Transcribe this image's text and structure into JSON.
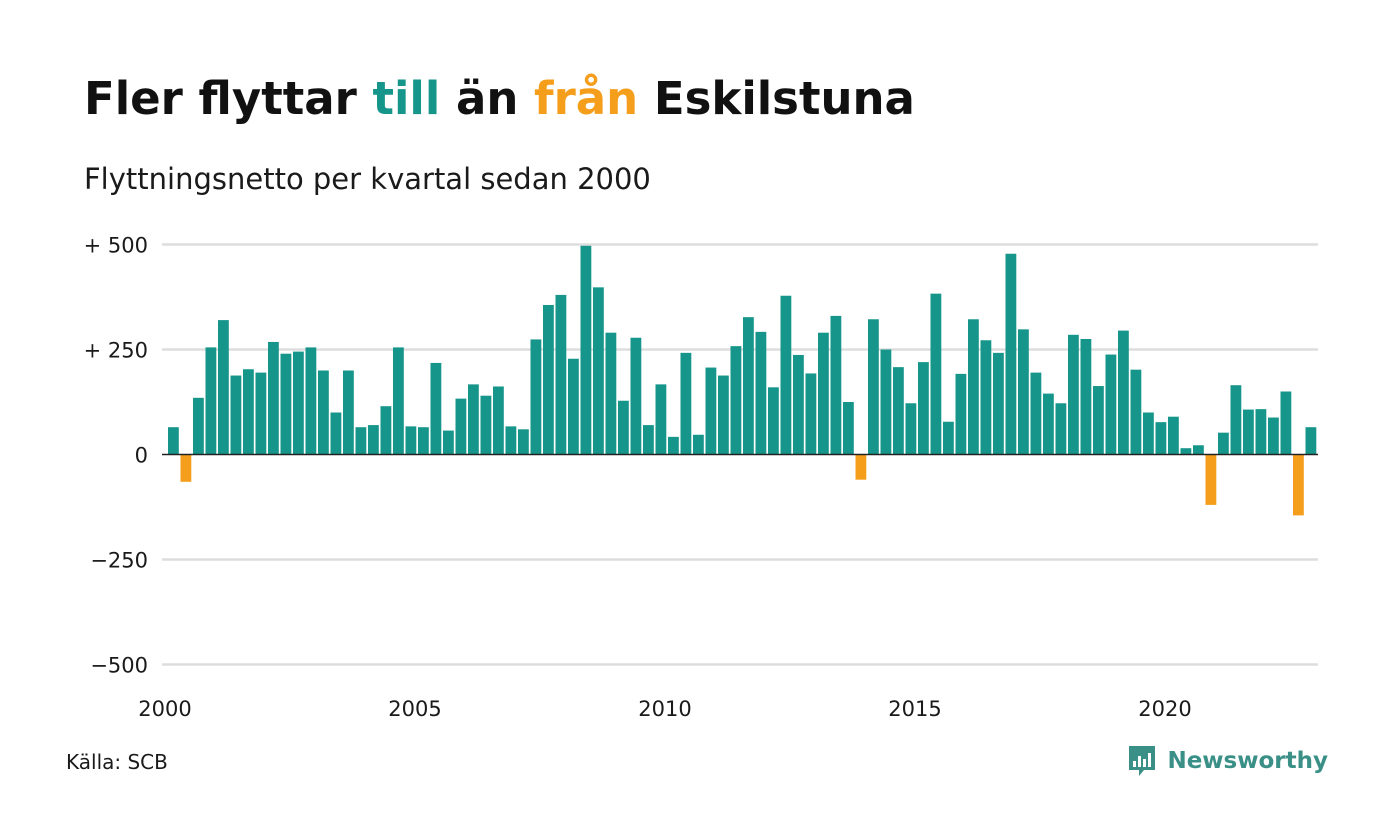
{
  "colors": {
    "positive": "#16968a",
    "negative": "#f59e1c",
    "grid": "#dddddd",
    "zero_line": "#222222",
    "brand": "#3a8f86"
  },
  "title": {
    "part1": "Fler flyttar ",
    "part2": "till",
    "part3": " än ",
    "part4": "från",
    "part5": " Eskilstuna"
  },
  "subtitle": "Flyttningsnetto per kvartal sedan 2000",
  "source": "Källa: SCB",
  "brand": {
    "name": "Newsworthy",
    "icon": "newsworthy-logo-icon"
  },
  "chart_data": {
    "type": "bar",
    "x_start": "2000 Q1",
    "frequency": "quarterly",
    "ylim": [
      -500,
      500
    ],
    "y_ticks": [
      {
        "value": 500,
        "label": "+ 500"
      },
      {
        "value": 250,
        "label": "+ 250"
      },
      {
        "value": 0,
        "label": "0"
      },
      {
        "value": -250,
        "label": "−250"
      },
      {
        "value": -500,
        "label": "−500"
      }
    ],
    "x_ticks": [
      {
        "year": 2000,
        "label": "2000"
      },
      {
        "year": 2005,
        "label": "2005"
      },
      {
        "year": 2010,
        "label": "2010"
      },
      {
        "year": 2015,
        "label": "2015"
      },
      {
        "year": 2020,
        "label": "2020"
      }
    ],
    "grid": true,
    "values": [
      65,
      -65,
      135,
      255,
      320,
      188,
      203,
      195,
      268,
      240,
      245,
      255,
      200,
      100,
      200,
      65,
      70,
      115,
      255,
      67,
      65,
      218,
      57,
      133,
      167,
      140,
      162,
      67,
      60,
      274,
      356,
      380,
      228,
      497,
      398,
      290,
      128,
      278,
      70,
      167,
      42,
      242,
      47,
      207,
      188,
      258,
      327,
      292,
      160,
      378,
      237,
      193,
      290,
      330,
      125,
      -60,
      322,
      250,
      208,
      122,
      220,
      383,
      78,
      192,
      322,
      272,
      242,
      478,
      298,
      195,
      145,
      122,
      285,
      275,
      163,
      238,
      295,
      202,
      100,
      77,
      90,
      15,
      22,
      -120,
      52,
      165,
      107,
      108,
      88,
      150,
      -145,
      65
    ]
  }
}
